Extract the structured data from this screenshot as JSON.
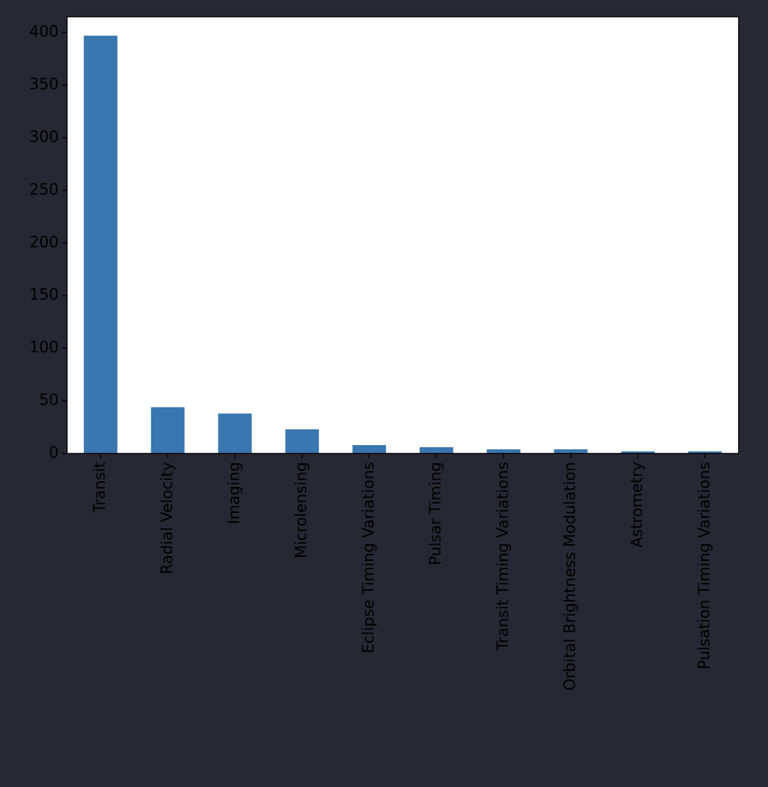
{
  "chart_data": {
    "type": "bar",
    "title": "",
    "xlabel": "",
    "ylabel": "",
    "categories": [
      "Transit",
      "Radial Velocity",
      "Imaging",
      "Microlensing",
      "Eclipse Timing Variations",
      "Pulsar Timing",
      "Transit Timing Variations",
      "Orbital Brightness Modulation",
      "Astrometry",
      "Pulsation Timing Variations"
    ],
    "values": [
      397,
      44,
      38,
      23,
      8,
      6,
      4,
      4,
      2,
      2
    ],
    "ylim": [
      0,
      415
    ],
    "yticks": [
      0,
      50,
      100,
      150,
      200,
      250,
      300,
      350,
      400
    ],
    "grid": false,
    "legend": "none",
    "colors": {
      "bar": "#3a76af",
      "background": "#262833",
      "plot_area": "#ffffff",
      "text": "#000000",
      "axis": "#000000"
    }
  }
}
